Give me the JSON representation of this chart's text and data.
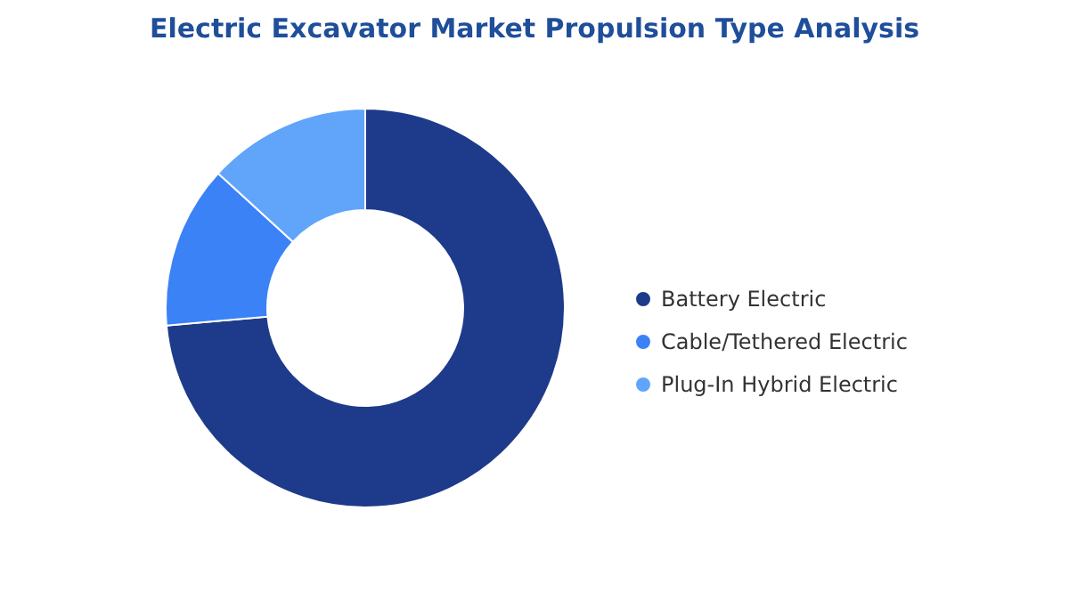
{
  "chart_data": {
    "type": "donut",
    "title": "Electric Excavator Market Propulsion Type Analysis",
    "categories": [
      "Battery Electric",
      "Cable/Tethered Electric",
      "Plug-In Hybrid Electric"
    ],
    "values": [
      73.6,
      13.2,
      13.2
    ],
    "colors": [
      "#1e3a8a",
      "#3b82f6",
      "#60a5fa"
    ],
    "legend": "right"
  }
}
